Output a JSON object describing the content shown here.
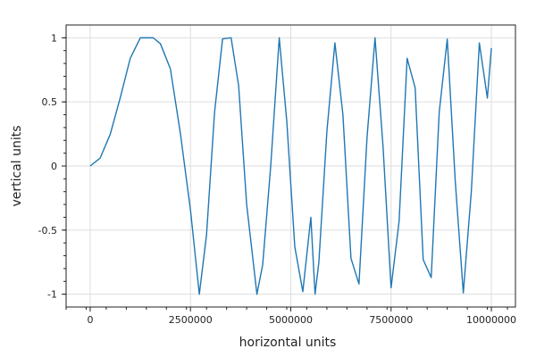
{
  "chart_data": {
    "type": "line",
    "title": "",
    "xlabel": "horizontal units",
    "ylabel": "vertical units",
    "xlim": [
      -600000,
      10600000
    ],
    "ylim": [
      -1.1,
      1.1
    ],
    "grid": true,
    "legend": "none",
    "series_color": "#1f77b4",
    "grid_color": "#dddddd",
    "x_ticks": [
      {
        "value": 0,
        "label": "0"
      },
      {
        "value": 2500000,
        "label": "2500000"
      },
      {
        "value": 5000000,
        "label": "5000000"
      },
      {
        "value": 7500000,
        "label": "7500000"
      },
      {
        "value": 10000000,
        "label": "10000000"
      }
    ],
    "y_ticks": [
      {
        "value": 1,
        "label": "1"
      },
      {
        "value": 0.5,
        "label": "0.5"
      },
      {
        "value": 0,
        "label": "0"
      },
      {
        "value": -0.5,
        "label": "-0.5"
      },
      {
        "value": -1,
        "label": "-1"
      }
    ],
    "series": [
      {
        "x": [
          0,
          250000,
          500000,
          750000,
          1000000,
          1250000,
          1570796,
          1750000,
          2000000,
          2250000,
          2500000,
          2720699,
          2900000,
          3100000,
          3300000,
          3512407,
          3700000,
          3900000,
          4156100,
          4300000,
          4500000,
          4712389,
          4900000,
          5100000,
          5300000,
          5500000,
          5604991,
          5700000,
          5900000,
          6100000,
          6300000,
          6500000,
          6700000,
          6900000,
          7100000,
          7300000,
          7500000,
          7700000,
          7900000,
          8100000,
          8300000,
          8500000,
          8700000,
          8900000,
          9100000,
          9300000,
          9500000,
          9700000,
          9900000,
          10000000
        ],
        "y": [
          0,
          0.0625,
          0.2474,
          0.5333,
          0.8415,
          0.9999,
          1.0,
          0.9543,
          0.7568,
          0.25,
          -0.3436,
          -1.0,
          -0.537,
          0.418,
          0.992,
          1.0,
          0.627,
          -0.3,
          -1.0,
          -0.77,
          0.0,
          1.0,
          0.35,
          -0.63,
          -0.98,
          -0.4,
          -1.0,
          -0.75,
          0.27,
          0.96,
          0.4,
          -0.72,
          -0.92,
          0.22,
          1.0,
          0.15,
          -0.95,
          -0.43,
          0.84,
          0.61,
          -0.73,
          -0.87,
          0.42,
          0.99,
          -0.12,
          -0.99,
          -0.2,
          0.96,
          0.53,
          0.92
        ]
      }
    ]
  }
}
